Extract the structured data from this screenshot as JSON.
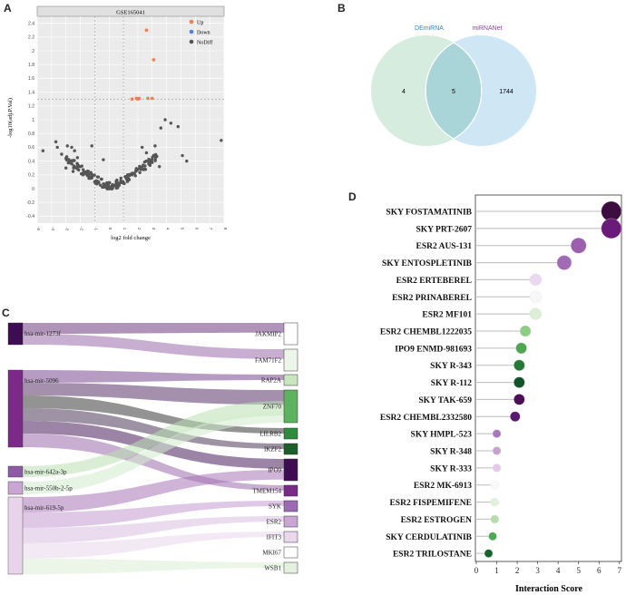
{
  "panels": {
    "a": "A",
    "b": "B",
    "c": "C",
    "d": "D"
  },
  "volcano": {
    "title": "GSE165041",
    "xlabel": "log2 fold change",
    "ylabel": "-log10(adj.P.Val)",
    "legend": [
      {
        "label": "Up",
        "color": "#f07c5a"
      },
      {
        "label": "Down",
        "color": "#5a7fd6"
      },
      {
        "label": "NoDiff",
        "color": "#555555"
      }
    ],
    "xticks": [
      -5,
      -4,
      -3,
      -2,
      -1,
      0,
      1,
      2,
      3,
      4,
      5,
      6,
      7,
      8
    ],
    "yticks": [
      -0.4,
      -0.2,
      0,
      0.2,
      0.4,
      0.6,
      0.8,
      1,
      1.2,
      1.4,
      1.6,
      1.8,
      2,
      2.2,
      2.4
    ],
    "threshold_y": 1.3,
    "up_points": [
      [
        2.6,
        2.3
      ],
      [
        3.1,
        1.87
      ],
      [
        1.6,
        1.3
      ],
      [
        1.9,
        1.31
      ],
      [
        2.1,
        1.31
      ],
      [
        2.0,
        1.3
      ],
      [
        2.7,
        1.31
      ],
      [
        3.0,
        1.31
      ]
    ]
  },
  "chart_data": [
    {
      "type": "scatter",
      "title": "GSE165041",
      "xlabel": "log2 fold change",
      "ylabel": "-log10(adj.P.Val)",
      "xlim": [
        -5,
        8
      ],
      "ylim": [
        -0.5,
        2.5
      ],
      "series": [
        {
          "name": "Up",
          "values": [
            [
              2.6,
              2.3
            ],
            [
              3.1,
              1.87
            ],
            [
              1.6,
              1.3
            ],
            [
              1.9,
              1.31
            ],
            [
              2.1,
              1.31
            ],
            [
              2.0,
              1.3
            ],
            [
              2.7,
              1.31
            ],
            [
              3.0,
              1.31
            ]
          ]
        },
        {
          "name": "NoDiff",
          "values": [
            [
              -4.6,
              0.55
            ],
            [
              -3.7,
              0.68
            ],
            [
              -3.6,
              0.6
            ],
            [
              -3.3,
              0.5
            ],
            [
              -2.9,
              0.62
            ],
            [
              -2.6,
              0.6
            ],
            [
              -2.4,
              0.55
            ],
            [
              -2.2,
              0.45
            ],
            [
              -1.2,
              0.62
            ],
            [
              -0.4,
              0.42
            ],
            [
              2.3,
              0.6
            ],
            [
              2.6,
              0.52
            ],
            [
              3.2,
              0.62
            ],
            [
              3.6,
              0.88
            ],
            [
              3.9,
              1.0
            ],
            [
              4.3,
              0.95
            ],
            [
              4.8,
              0.9
            ],
            [
              5.1,
              0.48
            ],
            [
              5.4,
              0.4
            ],
            [
              7.8,
              0.7
            ],
            [
              -3.0,
              0.3
            ],
            [
              -2.5,
              0.25
            ],
            [
              -1.8,
              0.2
            ],
            [
              -1.4,
              0.15
            ],
            [
              -1.0,
              0.1
            ],
            [
              -0.6,
              0.05
            ],
            [
              -0.2,
              0.02
            ],
            [
              0.2,
              0.03
            ],
            [
              0.5,
              0.06
            ],
            [
              0.9,
              0.1
            ],
            [
              1.2,
              0.15
            ],
            [
              1.6,
              0.2
            ],
            [
              2.0,
              0.28
            ],
            [
              2.5,
              0.33
            ],
            [
              3.0,
              0.38
            ],
            [
              3.5,
              0.32
            ]
          ]
        }
      ]
    },
    {
      "type": "venn",
      "sets": [
        {
          "name": "DEmiRNA",
          "only": 4
        },
        {
          "name": "miRNANet",
          "only": 1744
        }
      ],
      "intersection": 5
    },
    {
      "type": "sankey",
      "left": [
        "hsa-mir-1273f",
        "hsa-mir-5096",
        "hsa-mir-642a-3p",
        "hsa-mir-550b-2-5p",
        "hsa-mir-619-5p"
      ],
      "right": [
        "JAKMIP2",
        "FAM71F2",
        "RAP2A",
        "ZNF70",
        "LILRB2",
        "IKZF2",
        "IPO9",
        "TMEM154",
        "SYK",
        "ESR2",
        "IFIT3",
        "MKI67",
        "WSB1"
      ]
    },
    {
      "type": "scatter",
      "xlabel": "Interaction Score",
      "xlim": [
        0,
        7
      ],
      "categories": [
        "SKY  FOSTAMATINIB",
        "SKY  PRT-2607",
        "ESR2  AUS-131",
        "SKY  ENTOSPLETINIB",
        "ESR2  ERTEBEREL",
        "ESR2  PRINABEREL",
        "ESR2  MF101",
        "ESR2  CHEMBL1222035",
        "IPO9  ENMD-981693",
        "SKY  R-343",
        "SKY  R-112",
        "SKY  TAK-659",
        "ESR2  CHEMBL2332580",
        "SKY  HMPL-523",
        "SKY  R-348",
        "SKY  R-333",
        "ESR2  MK-6913",
        "ESR2  FISPEMIFENE",
        "ESR2  ESTROGEN",
        "SKY  CERDULATINIB",
        "ESR2  TRILOSTANE"
      ],
      "values": [
        6.6,
        6.6,
        5.0,
        4.3,
        2.9,
        2.9,
        2.9,
        2.4,
        2.2,
        2.1,
        2.1,
        2.1,
        1.9,
        1.0,
        1.0,
        1.0,
        0.9,
        0.9,
        0.9,
        0.8,
        0.6
      ]
    }
  ],
  "venn": {
    "set_a": "DEmiRNA",
    "set_b": "miRNANet",
    "only_a": "4",
    "both": "5",
    "only_b": "1744",
    "color_a": "#2f86c8",
    "color_b": "#8a3fa8"
  },
  "sankey": {
    "left": [
      {
        "label": "hsa-mir-1273f",
        "color": "#3d0c52"
      },
      {
        "label": "hsa-mir-5096",
        "color": "#7b2a87"
      },
      {
        "label": "hsa-mir-642a-3p",
        "color": "#8d5aa5"
      },
      {
        "label": "hsa-mir-550b-2-5p",
        "color": "#c9a6d3"
      },
      {
        "label": "hsa-mir-619-5p",
        "color": "#e8d4ea"
      }
    ],
    "right": [
      {
        "label": "JAKMIP2",
        "color": "#ffffff"
      },
      {
        "label": "FAM71F2",
        "color": "#eef6ea"
      },
      {
        "label": "RAP2A",
        "color": "#c7e6c0"
      },
      {
        "label": "ZNF70",
        "color": "#5db25f"
      },
      {
        "label": "LILRB2",
        "color": "#2e8b3e"
      },
      {
        "label": "IKZF2",
        "color": "#1b5e2a"
      },
      {
        "label": "IPO9",
        "color": "#3d0c52"
      },
      {
        "label": "TMEM154",
        "color": "#7b2a87"
      },
      {
        "label": "SYK",
        "color": "#9d6bb3"
      },
      {
        "label": "ESR2",
        "color": "#c9a6d3"
      },
      {
        "label": "IFIT3",
        "color": "#ead7ec"
      },
      {
        "label": "MKI67",
        "color": "#ffffff"
      },
      {
        "label": "WSB1",
        "color": "#e3f2df"
      }
    ]
  },
  "dot": {
    "xlabel": "Interaction Score",
    "xticks": [
      0,
      1,
      2,
      3,
      4,
      5,
      6,
      7
    ],
    "rows": [
      {
        "label": "SKY  FOSTAMATINIB",
        "value": 6.6,
        "size": 11,
        "color": "#3d0c40"
      },
      {
        "label": "SKY  PRT-2607",
        "value": 6.6,
        "size": 11,
        "color": "#6a1a78"
      },
      {
        "label": "ESR2  AUS-131",
        "value": 5.0,
        "size": 8.5,
        "color": "#9b5fae"
      },
      {
        "label": "SKY  ENTOSPLETINIB",
        "value": 4.3,
        "size": 8,
        "color": "#a06bb3"
      },
      {
        "label": "ESR2  ERTEBEREL",
        "value": 2.9,
        "size": 6.5,
        "color": "#ead9ee"
      },
      {
        "label": "ESR2  PRINABEREL",
        "value": 2.9,
        "size": 6.5,
        "color": "#f7f7f7"
      },
      {
        "label": "ESR2  MF101",
        "value": 2.9,
        "size": 6.5,
        "color": "#dcefd6"
      },
      {
        "label": "ESR2  CHEMBL1222035",
        "value": 2.4,
        "size": 6,
        "color": "#8ccd84"
      },
      {
        "label": "IPO9  ENMD-981693",
        "value": 2.2,
        "size": 6,
        "color": "#4ea653"
      },
      {
        "label": "SKY  R-343",
        "value": 2.1,
        "size": 6,
        "color": "#227a36"
      },
      {
        "label": "SKY  R-112",
        "value": 2.1,
        "size": 6,
        "color": "#14532a"
      },
      {
        "label": "SKY  TAK-659",
        "value": 2.1,
        "size": 6,
        "color": "#4b0f55"
      },
      {
        "label": "ESR2  CHEMBL2332580",
        "value": 1.9,
        "size": 5.5,
        "color": "#5a1a70"
      },
      {
        "label": "SKY  HMPL-523",
        "value": 1.0,
        "size": 4.5,
        "color": "#a877bd"
      },
      {
        "label": "SKY  R-348",
        "value": 1.0,
        "size": 4.5,
        "color": "#c5a2d2"
      },
      {
        "label": "SKY  R-333",
        "value": 1.0,
        "size": 4.5,
        "color": "#e3cbe8"
      },
      {
        "label": "ESR2  MK-6913",
        "value": 0.9,
        "size": 4.5,
        "color": "#f9f9f9"
      },
      {
        "label": "ESR2  FISPEMIFENE",
        "value": 0.9,
        "size": 4.5,
        "color": "#e1f1dc"
      },
      {
        "label": "ESR2  ESTROGEN",
        "value": 0.9,
        "size": 4.5,
        "color": "#b4ddab"
      },
      {
        "label": "SKY  CERDULATINIB",
        "value": 0.8,
        "size": 4.5,
        "color": "#4fa855"
      },
      {
        "label": "ESR2  TRILOSTANE",
        "value": 0.6,
        "size": 4.5,
        "color": "#17632e"
      }
    ]
  }
}
